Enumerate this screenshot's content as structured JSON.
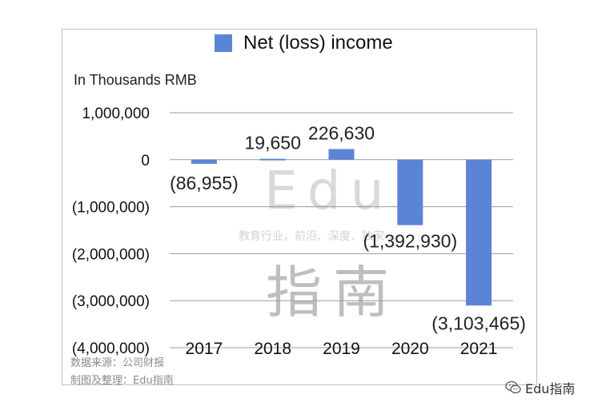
{
  "chart_data": {
    "type": "bar",
    "legend": [
      "Net (loss) income"
    ],
    "unit_label": "In Thousands RMB",
    "categories": [
      "2017",
      "2018",
      "2019",
      "2020",
      "2021"
    ],
    "values": [
      -86955,
      19650,
      226630,
      -1392930,
      -3103465
    ],
    "data_labels": [
      "(86,955)",
      "19,650",
      "226,630",
      "(1,392,930)",
      "(3,103,465)"
    ],
    "ylim": [
      -4000000,
      1000000
    ],
    "yticks": [
      1000000,
      0,
      -1000000,
      -2000000,
      -3000000,
      -4000000
    ],
    "ytick_labels": [
      "1,000,000",
      "0",
      "(1,000,000)",
      "(2,000,000)",
      "(3,000,000)",
      "(4,000,000)"
    ],
    "grid": true,
    "bar_color": "#5b84d6"
  },
  "footnotes": [
    "数据来源：公司财报",
    "制图及整理：Edu指南"
  ],
  "watermark": {
    "latin": "Edu",
    "subtitle": "教育行业，前沿、深度、独家",
    "cjk": "指南"
  },
  "credit": "Edu指南"
}
